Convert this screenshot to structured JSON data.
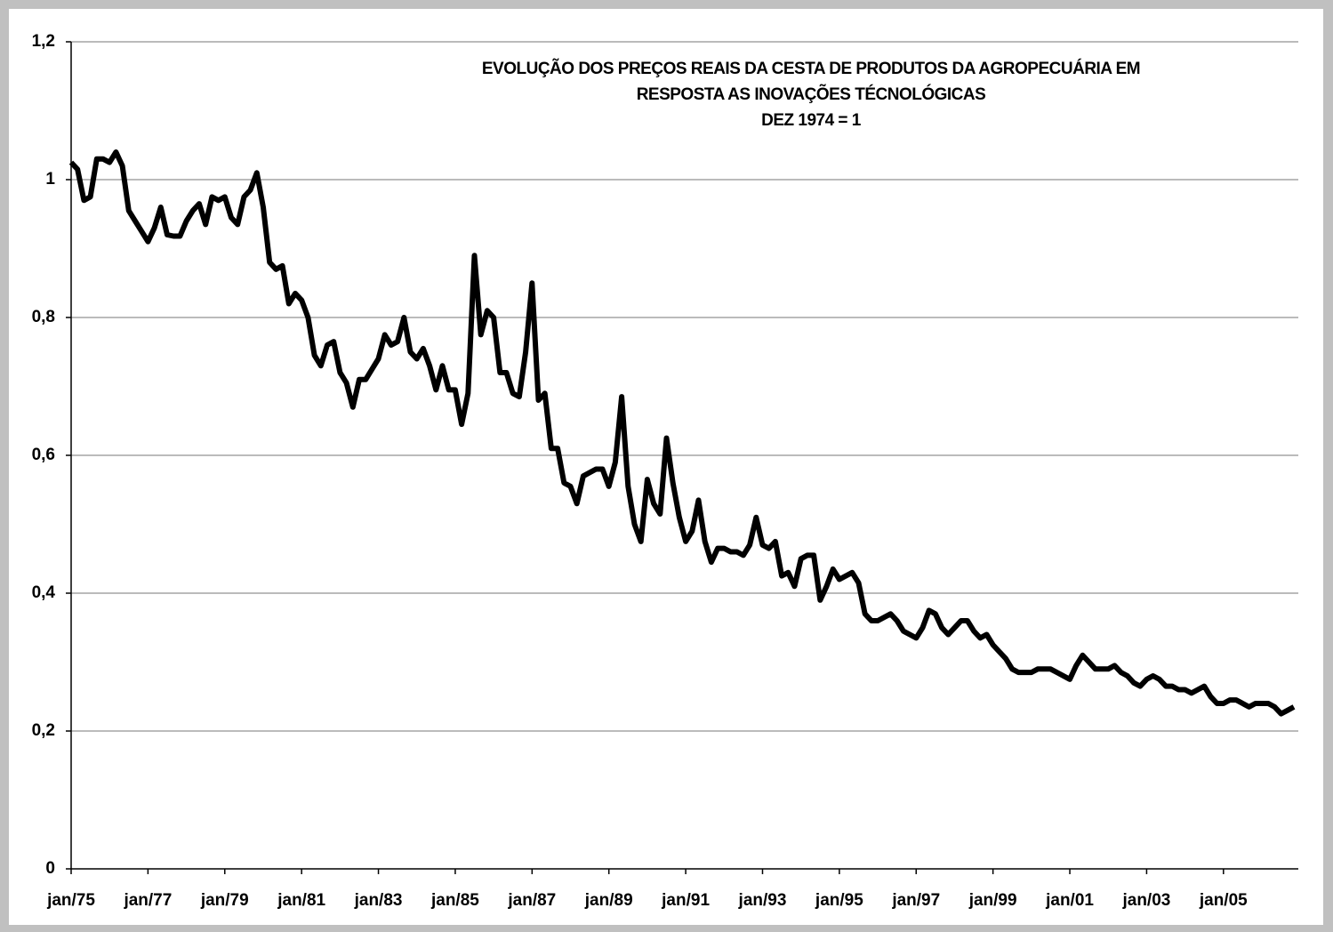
{
  "chart_data": {
    "type": "line",
    "title": [
      "EVOLUÇÃO DOS PREÇOS REAIS DA CESTA DE PRODUTOS DA AGROPECUÁRIA EM",
      "RESPOSTA AS INOVAÇÕES TÉCNOLÓGICAS",
      "DEZ 1974 = 1"
    ],
    "categories": [
      "jan/75",
      null,
      null,
      null,
      null,
      null,
      null,
      null,
      null,
      null,
      null,
      null,
      "jan/77",
      null,
      null,
      null,
      null,
      null,
      null,
      null,
      null,
      null,
      null,
      null,
      "jan/79",
      null,
      null,
      null,
      null,
      null,
      null,
      null,
      null,
      null,
      null,
      null,
      "jan/81",
      null,
      null,
      null,
      null,
      null,
      null,
      null,
      null,
      null,
      null,
      null,
      "jan/83",
      null,
      null,
      null,
      null,
      null,
      null,
      null,
      null,
      null,
      null,
      null,
      "jan/85",
      null,
      null,
      null,
      null,
      null,
      null,
      null,
      null,
      null,
      null,
      null,
      "jan/87",
      null,
      null,
      null,
      null,
      null,
      null,
      null,
      null,
      null,
      null,
      null,
      "jan/89",
      null,
      null,
      null,
      null,
      null,
      null,
      null,
      null,
      null,
      null,
      null,
      "jan/91",
      null,
      null,
      null,
      null,
      null,
      null,
      null,
      null,
      null,
      null,
      null,
      "jan/93",
      null,
      null,
      null,
      null,
      null,
      null,
      null,
      null,
      null,
      null,
      null,
      "jan/95",
      null,
      null,
      null,
      null,
      null,
      null,
      null,
      null,
      null,
      null,
      null,
      "jan/97",
      null,
      null,
      null,
      null,
      null,
      null,
      null,
      null,
      null,
      null,
      null,
      "jan/99",
      null,
      null,
      null,
      null,
      null,
      null,
      null,
      null,
      null,
      null,
      null,
      "jan/01",
      null,
      null,
      null,
      null,
      null,
      null,
      null,
      null,
      null,
      null,
      null,
      "jan/03",
      null,
      null,
      null,
      null,
      null,
      null,
      null,
      null,
      null,
      null,
      null,
      "jan/05",
      null,
      null,
      null,
      null,
      null,
      null,
      null,
      null,
      null,
      null,
      null
    ],
    "values": [
      1.025,
      1.015,
      0.97,
      0.975,
      1.03,
      1.03,
      1.025,
      1.04,
      1.02,
      0.955,
      0.94,
      0.925,
      0.91,
      0.93,
      0.96,
      0.92,
      0.918,
      0.918,
      0.94,
      0.955,
      0.965,
      0.935,
      0.975,
      0.97,
      0.975,
      0.945,
      0.935,
      0.975,
      0.985,
      1.01,
      0.96,
      0.88,
      0.87,
      0.875,
      0.82,
      0.835,
      0.825,
      0.8,
      0.745,
      0.73,
      0.76,
      0.765,
      0.72,
      0.705,
      0.67,
      0.71,
      0.71,
      0.725,
      0.74,
      0.775,
      0.76,
      0.765,
      0.8,
      0.75,
      0.74,
      0.755,
      0.73,
      0.695,
      0.73,
      0.695,
      0.695,
      0.645,
      0.69,
      0.89,
      0.775,
      0.81,
      0.8,
      0.72,
      0.72,
      0.69,
      0.685,
      0.75,
      0.85,
      0.68,
      0.69,
      0.61,
      0.61,
      0.56,
      0.555,
      0.53,
      0.57,
      0.575,
      0.58,
      0.58,
      0.555,
      0.59,
      0.685,
      0.555,
      0.5,
      0.475,
      0.565,
      0.53,
      0.515,
      0.625,
      0.56,
      0.51,
      0.475,
      0.49,
      0.535,
      0.475,
      0.445,
      0.465,
      0.465,
      0.46,
      0.46,
      0.455,
      0.47,
      0.51,
      0.47,
      0.465,
      0.475,
      0.425,
      0.43,
      0.41,
      0.45,
      0.455,
      0.455,
      0.39,
      0.41,
      0.435,
      0.42,
      0.425,
      0.43,
      0.415,
      0.37,
      0.36,
      0.36,
      0.365,
      0.37,
      0.36,
      0.345,
      0.34,
      0.335,
      0.35,
      0.375,
      0.37,
      0.35,
      0.34,
      0.35,
      0.36,
      0.36,
      0.345,
      0.335,
      0.34,
      0.325,
      0.315,
      0.305,
      0.29,
      0.285,
      0.285,
      0.285,
      0.29,
      0.29,
      0.29,
      0.285,
      0.28,
      0.275,
      0.295,
      0.31,
      0.3,
      0.29,
      0.29,
      0.29,
      0.295,
      0.285,
      0.28,
      0.27,
      0.265,
      0.275,
      0.28,
      0.275,
      0.265,
      0.265,
      0.26,
      0.26,
      0.255,
      0.26,
      0.265,
      0.25,
      0.24,
      0.24,
      0.245,
      0.245,
      0.24,
      0.235,
      0.24,
      0.24,
      0.24,
      0.235,
      0.225,
      0.23,
      0.235
    ],
    "color": "#000000",
    "ylim": [
      0,
      1.2
    ],
    "yticks": [
      0,
      {
        "value": 0.2,
        "label": "0,2"
      },
      {
        "value": 0.4,
        "label": "0,4"
      },
      {
        "value": 0.6,
        "label": "0,6"
      },
      {
        "value": 0.8,
        "label": "0,8"
      },
      1,
      {
        "value": 1.2,
        "label": "1,2"
      }
    ],
    "grid": true
  }
}
